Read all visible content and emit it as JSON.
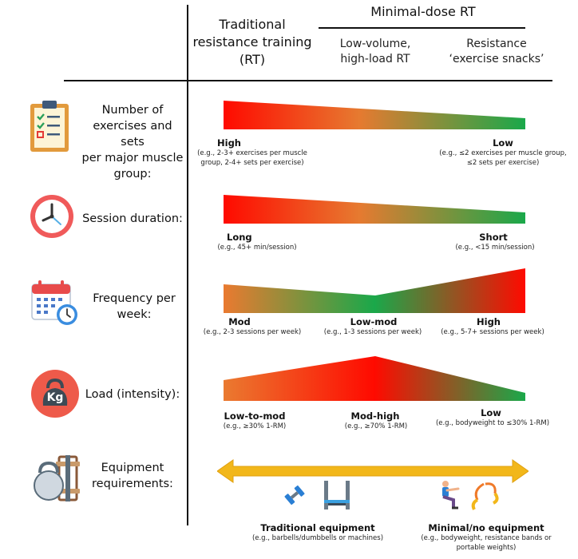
{
  "header": {
    "traditional": [
      "Traditional",
      "resistance training",
      "(RT)"
    ],
    "minimal": "Minimal-dose RT",
    "low_volume": [
      "Low-volume,",
      "high-load RT"
    ],
    "snacks": [
      "Resistance",
      "‘exercise snacks’"
    ]
  },
  "rows": [
    {
      "label": [
        "Number of",
        "exercises and sets",
        "per major muscle",
        "group:"
      ],
      "icon": "clipboard-checklist-icon",
      "points": [
        {
          "title": "High",
          "note": [
            "(e.g., 2-3+ exercises per muscle",
            "group, 2-4+ sets per exercise)"
          ]
        },
        {
          "title": "Low",
          "note": [
            "(e.g., ≤2 exercises per muscle group,",
            "≤2 sets per exercise)"
          ]
        }
      ]
    },
    {
      "label": [
        "Session duration:"
      ],
      "icon": "clock-icon",
      "points": [
        {
          "title": "Long",
          "note": [
            "(e.g., 45+ min/session)"
          ]
        },
        {
          "title": "Short",
          "note": [
            "(e.g., <15 min/session)"
          ]
        }
      ]
    },
    {
      "label": [
        "Frequency per",
        "week:"
      ],
      "icon": "calendar-clock-icon",
      "points": [
        {
          "title": "Mod",
          "note": [
            "(e.g., 2-3 sessions per week)"
          ]
        },
        {
          "title": "Low-mod",
          "note": [
            "(e.g., 1-3 sessions per week)"
          ]
        },
        {
          "title": "High",
          "note": [
            "(e.g., 5-7+ sessions per week)"
          ]
        }
      ]
    },
    {
      "label": [
        "Load (intensity):"
      ],
      "icon": "kettlebell-kg-icon",
      "icon_text": "Kg",
      "points": [
        {
          "title": "Low-to-mod",
          "note": [
            "(e.g., ≥30% 1-RM)"
          ]
        },
        {
          "title": "Mod-high",
          "note": [
            "(e.g., ≥70% 1-RM)"
          ]
        },
        {
          "title": "Low",
          "note": [
            "(e.g., bodyweight to ≤30% 1-RM)"
          ]
        }
      ]
    },
    {
      "label": [
        "Equipment",
        "requirements:"
      ],
      "icon": "kettlebell-barbell-icon",
      "points": [
        {
          "title": "Traditional equipment",
          "note": [
            "(e.g., barbells/dumbbells or machines)"
          ]
        },
        {
          "title": "Minimal/no equipment",
          "note": [
            "(e.g., bodyweight, resistance bands or",
            "portable weights)"
          ]
        }
      ]
    }
  ],
  "colors": {
    "red": "#ff0a00",
    "orange": "#ea7a30",
    "green": "#1aa84a",
    "arrow": "#f2b71a"
  }
}
